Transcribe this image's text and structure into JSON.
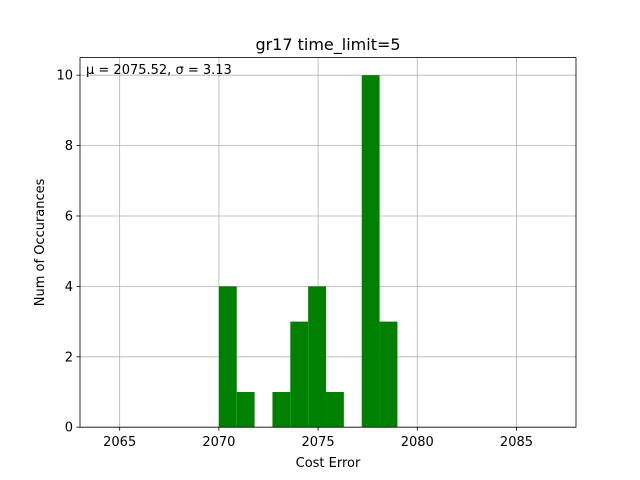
{
  "chart_data": {
    "type": "histogram",
    "title": "gr17 time_limit=5",
    "xlabel": "Cost Error",
    "ylabel": "Num of Occurances",
    "annotation": "μ = 2075.52,  σ = 3.13",
    "xlim": [
      2063,
      2088
    ],
    "ylim": [
      0,
      10.5
    ],
    "xticks": [
      "2065",
      "2070",
      "2075",
      "2080",
      "2085"
    ],
    "yticks": [
      "0",
      "2",
      "4",
      "6",
      "8",
      "10"
    ],
    "grid": true,
    "bar_color": "#008000",
    "bins": [
      {
        "x0": 2070.0,
        "x1": 2070.9,
        "count": 4
      },
      {
        "x0": 2070.9,
        "x1": 2071.8,
        "count": 1
      },
      {
        "x0": 2072.7,
        "x1": 2073.6,
        "count": 1
      },
      {
        "x0": 2073.6,
        "x1": 2074.5,
        "count": 3
      },
      {
        "x0": 2074.5,
        "x1": 2075.4,
        "count": 4
      },
      {
        "x0": 2075.4,
        "x1": 2076.3,
        "count": 1
      },
      {
        "x0": 2077.2,
        "x1": 2078.1,
        "count": 10
      },
      {
        "x0": 2078.1,
        "x1": 2079.0,
        "count": 3
      }
    ]
  }
}
